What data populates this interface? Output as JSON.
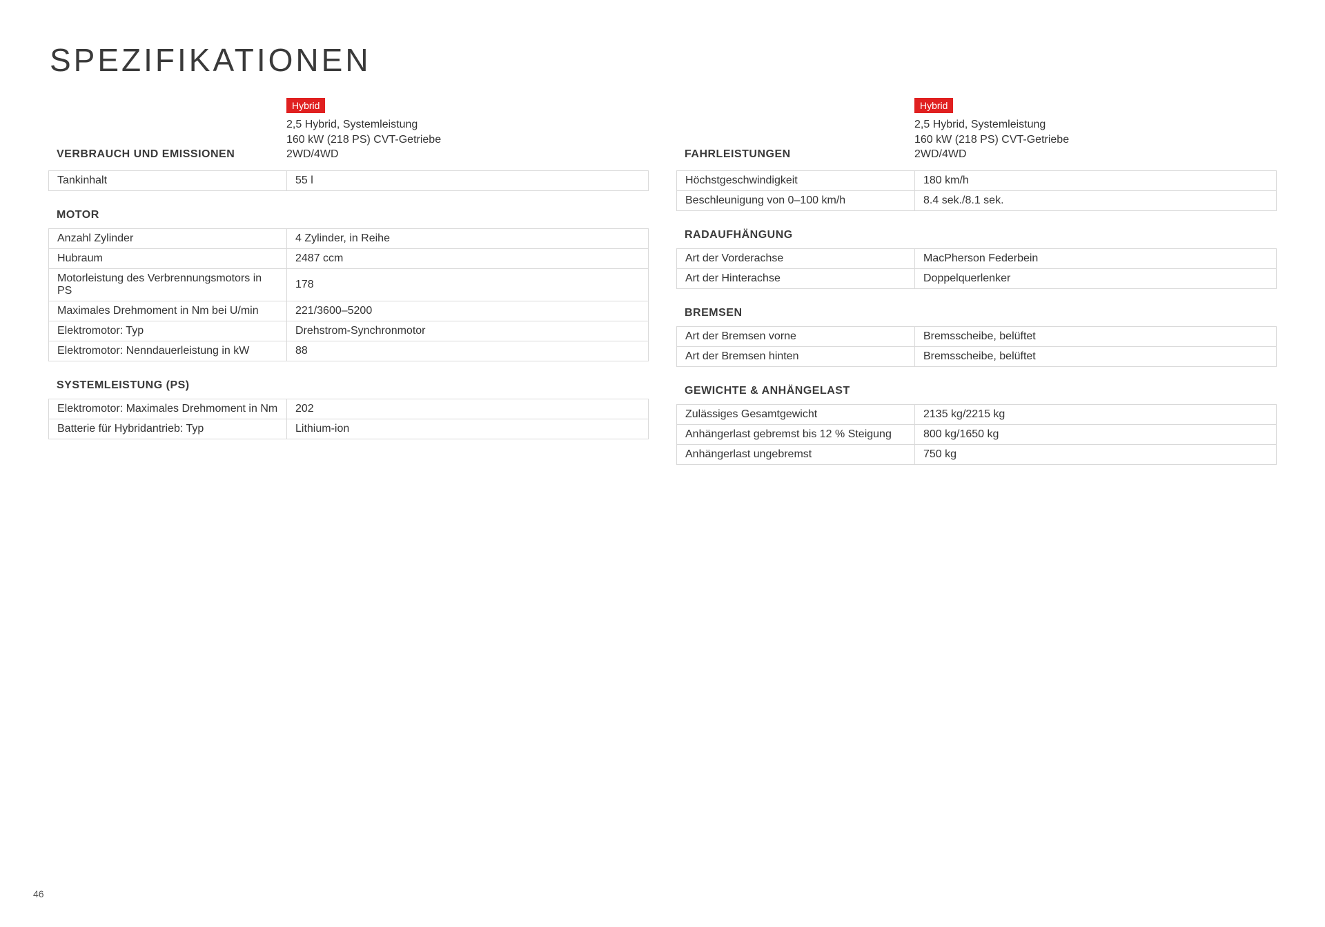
{
  "page_title": "SPEZIFIKATIONEN",
  "page_number": "46",
  "colors": {
    "badge_bg": "#e02020",
    "badge_text": "#ffffff",
    "border": "#d9d9d9",
    "text": "#333333"
  },
  "variant": {
    "badge": "Hybrid",
    "description": "2,5 Hybrid, Systemleistung\n160 kW (218 PS) CVT-Getriebe\n2WD/4WD"
  },
  "left": {
    "verbrauch": {
      "title": "VERBRAUCH UND EMISSIONEN",
      "rows": [
        {
          "label": "Tankinhalt",
          "value": "55 l"
        }
      ]
    },
    "motor": {
      "title": "MOTOR",
      "rows": [
        {
          "label": "Anzahl Zylinder",
          "value": "4 Zylinder, in Reihe"
        },
        {
          "label": "Hubraum",
          "value": "2487 ccm"
        },
        {
          "label": "Motorleistung des Verbrennungsmotors in PS",
          "value": "178"
        },
        {
          "label": "Maximales Drehmoment in Nm bei U/min",
          "value": "221/3600–5200"
        },
        {
          "label": "Elektromotor: Typ",
          "value": "Drehstrom-Synchronmotor"
        },
        {
          "label": "Elektromotor: Nenndauerleistung in kW",
          "value": "88"
        }
      ]
    },
    "system": {
      "title": "SYSTEMLEISTUNG (PS)",
      "rows": [
        {
          "label": "Elektromotor: Maximales Drehmoment in Nm",
          "value": "202"
        },
        {
          "label": "Batterie für Hybridantrieb: Typ",
          "value": "Lithium-ion"
        }
      ]
    }
  },
  "right": {
    "fahrleistungen": {
      "title": "FAHRLEISTUNGEN",
      "rows": [
        {
          "label": "Höchstgeschwindigkeit",
          "value": "180 km/h"
        },
        {
          "label": "Beschleunigung von 0–100 km/h",
          "value": "8.4 sek./8.1 sek."
        }
      ]
    },
    "radaufhaengung": {
      "title": "RADAUFHÄNGUNG",
      "rows": [
        {
          "label": "Art der Vorderachse",
          "value": "MacPherson Federbein"
        },
        {
          "label": "Art der Hinterachse",
          "value": "Doppelquerlenker"
        }
      ]
    },
    "bremsen": {
      "title": "BREMSEN",
      "rows": [
        {
          "label": "Art der Bremsen vorne",
          "value": "Bremsscheibe, belüftet"
        },
        {
          "label": "Art der Bremsen hinten",
          "value": "Bremsscheibe, belüftet"
        }
      ]
    },
    "gewichte": {
      "title": "GEWICHTE & ANHÄNGELAST",
      "rows": [
        {
          "label": "Zulässiges Gesamtgewicht",
          "value": "2135 kg/2215 kg"
        },
        {
          "label": "Anhängerlast gebremst bis 12 % Steigung",
          "value": "800 kg/1650 kg"
        },
        {
          "label": "Anhängerlast ungebremst",
          "value": "750 kg"
        }
      ]
    }
  }
}
